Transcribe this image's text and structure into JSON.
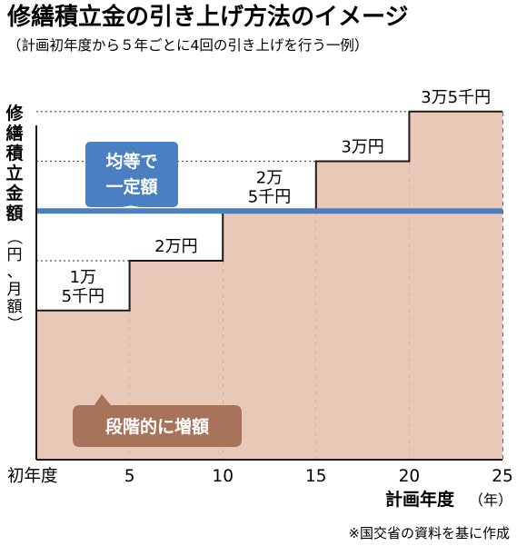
{
  "title": "修繕積立金の引き上げ方法のイメージ",
  "subtitle": "（計画初年度から５年ごとに4回の引き上げを行う一例）",
  "source": "※国交省の資料を基に作成",
  "colors": {
    "step_fill": "#e8c9b8",
    "step_line": "#231815",
    "flat_line": "#4a7fc1",
    "flat_callout": "#4a7fc1",
    "step_callout": "#a8735b",
    "guide": "#555555"
  },
  "chart_data": {
    "type": "step-area",
    "title": "修繕積立金の引き上げ方法のイメージ",
    "subtitle": "（計画初年度から５年ごとに4回の引き上げを行う一例）",
    "ylabel": "修繕積立金額",
    "ylabel_unit": "（円、月額）",
    "xlabel": "計画年度",
    "xlabel_unit": "（年）",
    "x_ticks": [
      {
        "value": 0,
        "label": "初年度"
      },
      {
        "value": 5,
        "label": "5"
      },
      {
        "value": 10,
        "label": "10"
      },
      {
        "value": 15,
        "label": "15"
      },
      {
        "value": 20,
        "label": "20"
      },
      {
        "value": 25,
        "label": "25"
      }
    ],
    "xlim": [
      0,
      25
    ],
    "ylim": [
      0,
      40000
    ],
    "steps": [
      {
        "x_start": 0,
        "x_end": 5,
        "y": 15000,
        "label_lines": [
          "1万",
          "5千円"
        ]
      },
      {
        "x_start": 5,
        "x_end": 10,
        "y": 20000,
        "label_lines": [
          "2万円"
        ]
      },
      {
        "x_start": 10,
        "x_end": 15,
        "y": 25000,
        "label_lines": [
          "2万",
          "5千円"
        ]
      },
      {
        "x_start": 15,
        "x_end": 20,
        "y": 30000,
        "label_lines": [
          "3万円"
        ]
      },
      {
        "x_start": 20,
        "x_end": 25,
        "y": 35000,
        "label_lines": [
          "3万5千円"
        ]
      }
    ],
    "flat_line": {
      "y": 25000
    },
    "annotations": {
      "flat": [
        "均等で",
        "一定額"
      ],
      "step": "段階的に増額"
    }
  }
}
